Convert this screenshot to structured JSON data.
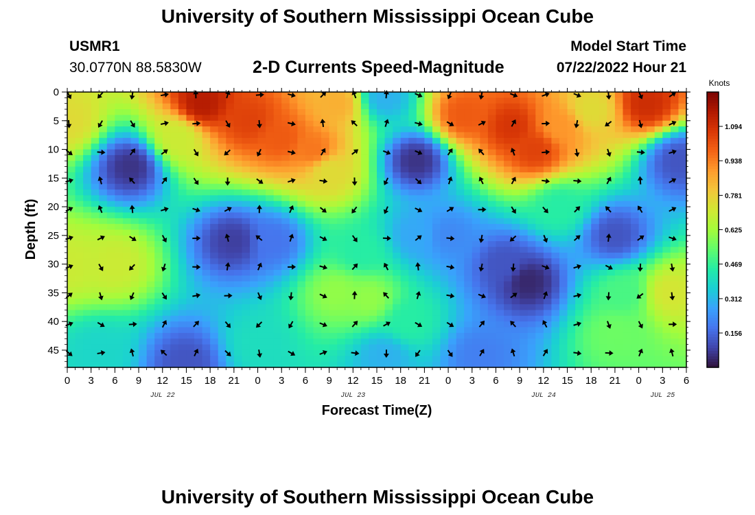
{
  "header": {
    "title": "University of Southern Mississippi Ocean Cube",
    "station_id": "USMR1",
    "coordinates": "30.0770N  88.5830W",
    "chart_title": "2-D Currents Speed-Magnitude",
    "model_start_label": "Model Start Time",
    "model_start_value": "07/22/2022 Hour 21"
  },
  "footer": {
    "title": "University of Southern Mississippi Ocean Cube"
  },
  "chart_data": {
    "type": "heatmap",
    "title": "2-D Currents Speed-Magnitude",
    "xlabel": "Forecast Time(Z)",
    "ylabel": "Depth (ft)",
    "units": "Knots",
    "x_tick_labels": [
      "0",
      "3",
      "6",
      "9",
      "12",
      "15",
      "18",
      "21",
      "0",
      "3",
      "6",
      "9",
      "12",
      "15",
      "18",
      "21",
      "0",
      "3",
      "6",
      "9",
      "12",
      "15",
      "18",
      "21",
      "0",
      "3",
      "6"
    ],
    "x_tick_hours": [
      0,
      3,
      6,
      9,
      12,
      15,
      18,
      21,
      24,
      27,
      30,
      33,
      36,
      39,
      42,
      45,
      48,
      51,
      54,
      57,
      60,
      63,
      66,
      69,
      72,
      75,
      78
    ],
    "xlim": [
      0,
      78
    ],
    "date_labels": [
      {
        "hour": 12,
        "label": "JUL 22"
      },
      {
        "hour": 36,
        "label": "JUL 23"
      },
      {
        "hour": 60,
        "label": "JUL 24"
      },
      {
        "hour": 75,
        "label": "JUL 25"
      }
    ],
    "y_ticks": [
      0,
      5,
      10,
      15,
      20,
      25,
      30,
      35,
      40,
      45
    ],
    "ylim": [
      0,
      48
    ],
    "y_inverted": true,
    "colorbar": {
      "ticks": [
        0.156,
        0.312,
        0.469,
        0.625,
        0.781,
        0.938,
        1.094
      ],
      "tick_labels": [
        "0.156",
        "0.312",
        "0.469",
        "0.625",
        "0.781",
        "0.938",
        "1.094"
      ],
      "range": [
        0.0,
        1.25
      ]
    },
    "speed_field_centers": [
      {
        "hour": 0,
        "depth": 5,
        "speed": 0.75
      },
      {
        "hour": 0,
        "depth": 30,
        "speed": 0.7
      },
      {
        "hour": 6,
        "depth": 30,
        "speed": 0.7
      },
      {
        "hour": 4,
        "depth": 45,
        "speed": 0.38
      },
      {
        "hour": 8,
        "depth": 13,
        "speed": 0.06
      },
      {
        "hour": 14,
        "depth": 8,
        "speed": 0.7
      },
      {
        "hour": 17,
        "depth": 2,
        "speed": 1.15
      },
      {
        "hour": 23,
        "depth": 5,
        "speed": 1.05
      },
      {
        "hour": 27,
        "depth": 8,
        "speed": 1.0
      },
      {
        "hour": 31,
        "depth": 10,
        "speed": 0.95
      },
      {
        "hour": 34,
        "depth": 2,
        "speed": 0.85
      },
      {
        "hour": 33,
        "depth": 14,
        "speed": 0.75
      },
      {
        "hour": 21,
        "depth": 26,
        "speed": 0.08
      },
      {
        "hour": 26,
        "depth": 26,
        "speed": 0.18
      },
      {
        "hour": 37,
        "depth": 28,
        "speed": 0.45
      },
      {
        "hour": 34,
        "depth": 35,
        "speed": 0.6
      },
      {
        "hour": 38,
        "depth": 36,
        "speed": 0.6
      },
      {
        "hour": 44,
        "depth": 12,
        "speed": 0.06
      },
      {
        "hour": 44,
        "depth": 25,
        "speed": 0.28
      },
      {
        "hour": 43,
        "depth": 40,
        "speed": 0.45
      },
      {
        "hour": 40,
        "depth": 1,
        "speed": 0.3
      },
      {
        "hour": 50,
        "depth": 4,
        "speed": 1.0
      },
      {
        "hour": 56,
        "depth": 6,
        "speed": 1.08
      },
      {
        "hour": 59,
        "depth": 10,
        "speed": 1.05
      },
      {
        "hour": 62,
        "depth": 6,
        "speed": 0.9
      },
      {
        "hour": 66,
        "depth": 3,
        "speed": 0.75
      },
      {
        "hour": 73,
        "depth": 2,
        "speed": 1.1
      },
      {
        "hour": 77,
        "depth": 12,
        "speed": 0.12
      },
      {
        "hour": 58,
        "depth": 33,
        "speed": 0.04
      },
      {
        "hour": 55,
        "depth": 30,
        "speed": 0.12
      },
      {
        "hour": 69,
        "depth": 25,
        "speed": 0.12
      },
      {
        "hour": 76,
        "depth": 35,
        "speed": 0.72
      },
      {
        "hour": 69,
        "depth": 42,
        "speed": 0.55
      },
      {
        "hour": 70,
        "depth": 35,
        "speed": 0.5
      },
      {
        "hour": 24,
        "depth": 44,
        "speed": 0.4
      },
      {
        "hour": 40,
        "depth": 46,
        "speed": 0.3
      },
      {
        "hour": 15,
        "depth": 47,
        "speed": 0.12
      },
      {
        "hour": 52,
        "depth": 46,
        "speed": 0.2
      },
      {
        "hour": 48,
        "depth": 25,
        "speed": 0.22
      },
      {
        "hour": 62,
        "depth": 20,
        "speed": 0.45
      }
    ]
  },
  "colors": {
    "colormap": [
      "#30123b",
      "#4145ab",
      "#4675ed",
      "#39a2fc",
      "#1bcfd4",
      "#24eca6",
      "#61fc6c",
      "#a4fc3b",
      "#d1e834",
      "#f3c63a",
      "#fe9b2d",
      "#f36315",
      "#d93806",
      "#b11901",
      "#7a0402"
    ]
  }
}
